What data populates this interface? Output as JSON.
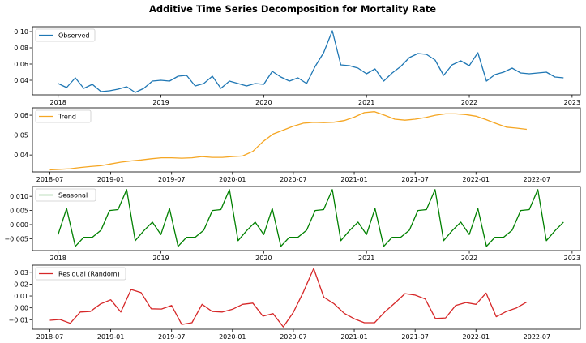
{
  "chart_data": {
    "title": "Additive Time Series Decomposition for Mortality Rate",
    "panels": [
      {
        "name": "observed",
        "type": "line",
        "label": "Observed",
        "color": "#1f77b4",
        "ylim": [
          0.022,
          0.106
        ],
        "yticks": [
          0.04,
          0.06,
          0.08,
          0.1
        ],
        "ytick_labels": [
          "0.04",
          "0.06",
          "0.08",
          "0.10"
        ],
        "xlim": [
          2017.75,
          2023.08
        ],
        "xticks": [
          2018,
          2019,
          2020,
          2021,
          2022,
          2023
        ],
        "xtick_labels": [
          "2018",
          "2019",
          "2020",
          "2021",
          "2022",
          "2023"
        ],
        "x": [
          2018.0,
          2018.083,
          2018.167,
          2018.25,
          2018.333,
          2018.417,
          2018.5,
          2018.583,
          2018.667,
          2018.75,
          2018.833,
          2018.917,
          2019.0,
          2019.083,
          2019.167,
          2019.25,
          2019.333,
          2019.417,
          2019.5,
          2019.583,
          2019.667,
          2019.75,
          2019.833,
          2019.917,
          2020.0,
          2020.083,
          2020.167,
          2020.25,
          2020.333,
          2020.417,
          2020.5,
          2020.583,
          2020.667,
          2020.75,
          2020.833,
          2020.917,
          2021.0,
          2021.083,
          2021.167,
          2021.25,
          2021.333,
          2021.417,
          2021.5,
          2021.583,
          2021.667,
          2021.75,
          2021.833,
          2021.917,
          2022.0,
          2022.083,
          2022.167,
          2022.25,
          2022.333,
          2022.417,
          2022.5,
          2022.583,
          2022.667,
          2022.75,
          2022.833,
          2022.917
        ],
        "y": [
          0.036,
          0.031,
          0.043,
          0.03,
          0.035,
          0.026,
          0.027,
          0.029,
          0.032,
          0.025,
          0.03,
          0.039,
          0.04,
          0.039,
          0.045,
          0.046,
          0.033,
          0.036,
          0.045,
          0.03,
          0.039,
          0.036,
          0.033,
          0.036,
          0.035,
          0.051,
          0.044,
          0.039,
          0.043,
          0.036,
          0.057,
          0.074,
          0.101,
          0.059,
          0.058,
          0.055,
          0.048,
          0.054,
          0.039,
          0.049,
          0.057,
          0.068,
          0.073,
          0.072,
          0.065,
          0.046,
          0.059,
          0.064,
          0.058,
          0.074,
          0.039,
          0.047,
          0.05,
          0.055,
          0.049,
          0.048,
          0.049,
          0.05,
          0.044,
          0.043
        ]
      },
      {
        "name": "trend",
        "type": "line",
        "label": "Trend",
        "color": "#f5a623",
        "ylim": [
          0.0315,
          0.0637
        ],
        "yticks": [
          0.04,
          0.05,
          0.06
        ],
        "ytick_labels": [
          "0.04",
          "0.05",
          "0.06"
        ],
        "xlim": [
          2018.357,
          2022.857
        ],
        "xticks": [
          2018.5,
          2019.0,
          2019.5,
          2020.0,
          2020.5,
          2021.0,
          2021.5,
          2022.0,
          2022.5
        ],
        "xtick_labels": [
          "2018-07",
          "2019-01",
          "2019-07",
          "2020-01",
          "2020-07",
          "2021-01",
          "2021-07",
          "2022-01",
          "2022-07"
        ],
        "x": [
          2018.5,
          2018.583,
          2018.667,
          2018.75,
          2018.833,
          2018.917,
          2019.0,
          2019.083,
          2019.167,
          2019.25,
          2019.333,
          2019.417,
          2019.5,
          2019.583,
          2019.667,
          2019.75,
          2019.833,
          2019.917,
          2020.0,
          2020.083,
          2020.167,
          2020.25,
          2020.333,
          2020.417,
          2020.5,
          2020.583,
          2020.667,
          2020.75,
          2020.833,
          2020.917,
          2021.0,
          2021.083,
          2021.167,
          2021.25,
          2021.333,
          2021.417,
          2021.5,
          2021.583,
          2021.667,
          2021.75,
          2021.833,
          2021.917,
          2022.0,
          2022.083,
          2022.167,
          2022.25,
          2022.333,
          2022.417
        ],
        "y": [
          0.0325,
          0.0328,
          0.0331,
          0.0337,
          0.0342,
          0.0346,
          0.0355,
          0.0364,
          0.037,
          0.0375,
          0.0381,
          0.0386,
          0.0386,
          0.0384,
          0.0386,
          0.0392,
          0.0388,
          0.0388,
          0.0392,
          0.0395,
          0.0418,
          0.0467,
          0.0505,
          0.0525,
          0.0545,
          0.056,
          0.0564,
          0.0563,
          0.0565,
          0.0573,
          0.059,
          0.0613,
          0.0618,
          0.06,
          0.058,
          0.0575,
          0.058,
          0.0588,
          0.06,
          0.0607,
          0.0607,
          0.0603,
          0.0595,
          0.0578,
          0.0558,
          0.054,
          0.0535,
          0.0529
        ]
      },
      {
        "name": "seasonal",
        "type": "line",
        "label": "Seasonal",
        "color": "#008000",
        "ylim": [
          -0.0092,
          0.0135
        ],
        "yticks": [
          -0.005,
          0.0,
          0.005,
          0.01
        ],
        "ytick_labels": [
          "−0.005",
          "0.000",
          "0.005",
          "0.010"
        ],
        "xlim": [
          2017.75,
          2023.08
        ],
        "xticks": [
          2018,
          2019,
          2020,
          2021,
          2022,
          2023
        ],
        "xtick_labels": [
          "2018",
          "2019",
          "2020",
          "2021",
          "2022",
          "2023"
        ],
        "x": [
          2018.0,
          2018.083,
          2018.167,
          2018.25,
          2018.333,
          2018.417,
          2018.5,
          2018.583,
          2018.667,
          2018.75,
          2018.833,
          2018.917,
          2019.0,
          2019.083,
          2019.167,
          2019.25,
          2019.333,
          2019.417,
          2019.5,
          2019.583,
          2019.667,
          2019.75,
          2019.833,
          2019.917,
          2020.0,
          2020.083,
          2020.167,
          2020.25,
          2020.333,
          2020.417,
          2020.5,
          2020.583,
          2020.667,
          2020.75,
          2020.833,
          2020.917,
          2021.0,
          2021.083,
          2021.167,
          2021.25,
          2021.333,
          2021.417,
          2021.5,
          2021.583,
          2021.667,
          2021.75,
          2021.833,
          2021.917,
          2022.0,
          2022.083,
          2022.167,
          2022.25,
          2022.333,
          2022.417,
          2022.5,
          2022.583,
          2022.667,
          2022.75,
          2022.833,
          2022.917
        ],
        "y": [
          -0.0035,
          0.0057,
          -0.0077,
          -0.0045,
          -0.0045,
          -0.002,
          0.005,
          0.0053,
          0.0124,
          -0.0057,
          -0.0022,
          0.0009,
          -0.0035,
          0.0057,
          -0.0077,
          -0.0045,
          -0.0045,
          -0.002,
          0.005,
          0.0053,
          0.0124,
          -0.0057,
          -0.0022,
          0.0009,
          -0.0035,
          0.0057,
          -0.0077,
          -0.0045,
          -0.0045,
          -0.002,
          0.005,
          0.0053,
          0.0124,
          -0.0057,
          -0.0022,
          0.0009,
          -0.0035,
          0.0057,
          -0.0077,
          -0.0045,
          -0.0045,
          -0.002,
          0.005,
          0.0053,
          0.0124,
          -0.0057,
          -0.0022,
          0.0009,
          -0.0035,
          0.0057,
          -0.0077,
          -0.0045,
          -0.0045,
          -0.002,
          0.005,
          0.0053,
          0.0124,
          -0.0057,
          -0.0022,
          0.0009
        ]
      },
      {
        "name": "residual",
        "type": "line",
        "label": "Residual (Random)",
        "color": "#d62728",
        "ylim": [
          -0.018,
          0.036
        ],
        "yticks": [
          -0.01,
          0.0,
          0.01,
          0.02,
          0.03
        ],
        "ytick_labels": [
          "−0.01",
          "0.00",
          "0.01",
          "0.02",
          "0.03"
        ],
        "xlim": [
          2018.357,
          2022.857
        ],
        "xticks": [
          2018.5,
          2019.0,
          2019.5,
          2020.0,
          2020.5,
          2021.0,
          2021.5,
          2022.0,
          2022.5
        ],
        "xtick_labels": [
          "2018-07",
          "2019-01",
          "2019-07",
          "2020-01",
          "2020-07",
          "2021-01",
          "2021-07",
          "2022-01",
          "2022-07"
        ],
        "x": [
          2018.5,
          2018.583,
          2018.667,
          2018.75,
          2018.833,
          2018.917,
          2019.0,
          2019.083,
          2019.167,
          2019.25,
          2019.333,
          2019.417,
          2019.5,
          2019.583,
          2019.667,
          2019.75,
          2019.833,
          2019.917,
          2020.0,
          2020.083,
          2020.167,
          2020.25,
          2020.333,
          2020.417,
          2020.5,
          2020.583,
          2020.667,
          2020.75,
          2020.833,
          2020.917,
          2021.0,
          2021.083,
          2021.167,
          2021.25,
          2021.333,
          2021.417,
          2021.5,
          2021.583,
          2021.667,
          2021.75,
          2021.833,
          2021.917,
          2022.0,
          2022.083,
          2022.167,
          2022.25,
          2022.333,
          2022.417
        ],
        "y": [
          -0.0105,
          -0.0098,
          -0.013,
          -0.0035,
          -0.003,
          0.0033,
          0.0068,
          -0.0035,
          0.0155,
          0.0128,
          -0.0008,
          -0.001,
          0.002,
          -0.014,
          -0.0125,
          0.003,
          -0.003,
          -0.0035,
          -0.0012,
          0.003,
          0.004,
          -0.007,
          -0.0048,
          -0.016,
          -0.0038,
          0.0135,
          0.0332,
          0.009,
          0.0035,
          -0.0045,
          -0.0092,
          -0.0125,
          -0.0125,
          -0.0035,
          0.004,
          0.012,
          0.0108,
          0.0075,
          -0.009,
          -0.0085,
          0.002,
          0.0045,
          0.003,
          0.0125,
          -0.0075,
          -0.003,
          0.0,
          0.005
        ]
      }
    ]
  }
}
